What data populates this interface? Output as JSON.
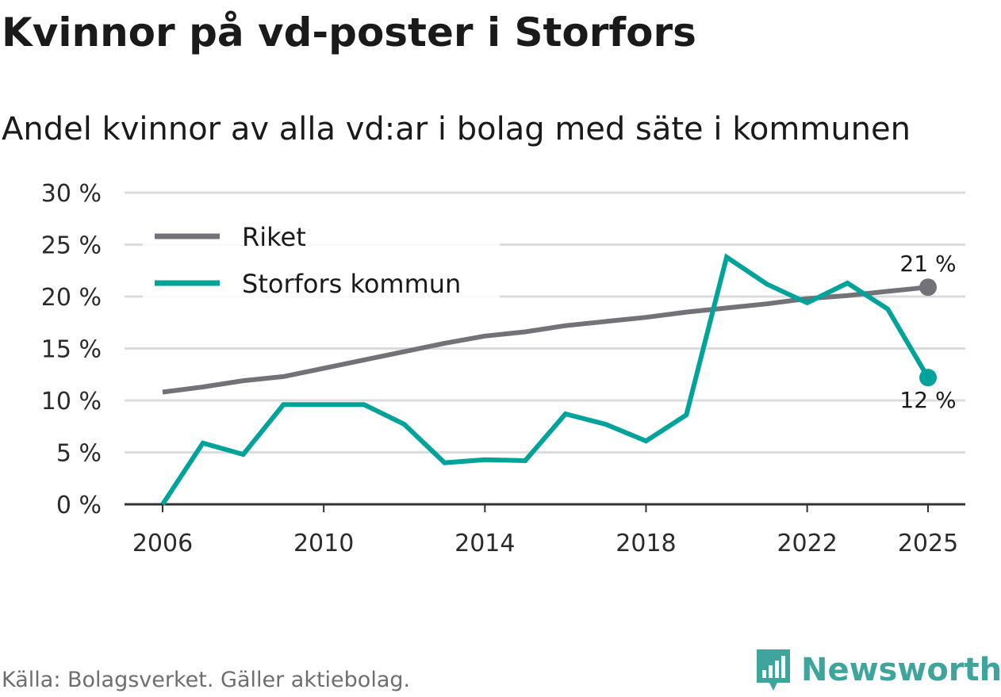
{
  "header": {
    "title": "Kvinnor på vd-poster i Storfors",
    "subtitle": "Andel kvinnor av alla vd:ar i bolag med säte i kommunen"
  },
  "footer": {
    "source": "Källa: Bolagsverket. Gäller aktiebolag.",
    "brand": "Newsworthy"
  },
  "chart_data": {
    "type": "line",
    "title": "Kvinnor på vd-poster i Storfors",
    "subtitle": "Andel kvinnor av alla vd:ar i bolag med säte i kommunen",
    "xlabel": "",
    "ylabel": "",
    "x": [
      2006,
      2007,
      2008,
      2009,
      2010,
      2011,
      2012,
      2013,
      2014,
      2015,
      2016,
      2017,
      2018,
      2019,
      2020,
      2021,
      2022,
      2023,
      2024,
      2025
    ],
    "x_ticks": [
      2006,
      2010,
      2014,
      2018,
      2022,
      2025
    ],
    "x_tick_labels": [
      "2006",
      "2010",
      "2014",
      "2018",
      "2022",
      "2025"
    ],
    "ylim": [
      0,
      30
    ],
    "y_ticks": [
      0,
      5,
      10,
      15,
      20,
      25,
      30
    ],
    "y_tick_labels": [
      "0 %",
      "5 %",
      "10 %",
      "15 %",
      "20 %",
      "25 %",
      "30 %"
    ],
    "grid": true,
    "legend_position": "top-left",
    "series": [
      {
        "name": "Riket",
        "color": "#737278",
        "values": [
          10.8,
          11.3,
          11.9,
          12.3,
          13.1,
          13.9,
          14.7,
          15.5,
          16.2,
          16.6,
          17.2,
          17.6,
          18.0,
          18.5,
          18.9,
          19.3,
          19.8,
          20.1,
          20.5,
          20.9
        ],
        "end_label": "21 %"
      },
      {
        "name": "Storfors kommun",
        "color": "#00a39a",
        "values": [
          0.0,
          5.9,
          4.8,
          9.6,
          9.6,
          9.6,
          7.7,
          4.0,
          4.3,
          4.2,
          8.7,
          7.7,
          6.1,
          8.6,
          23.8,
          21.2,
          19.4,
          21.3,
          18.8,
          12.2
        ],
        "end_label": "12 %"
      }
    ]
  }
}
